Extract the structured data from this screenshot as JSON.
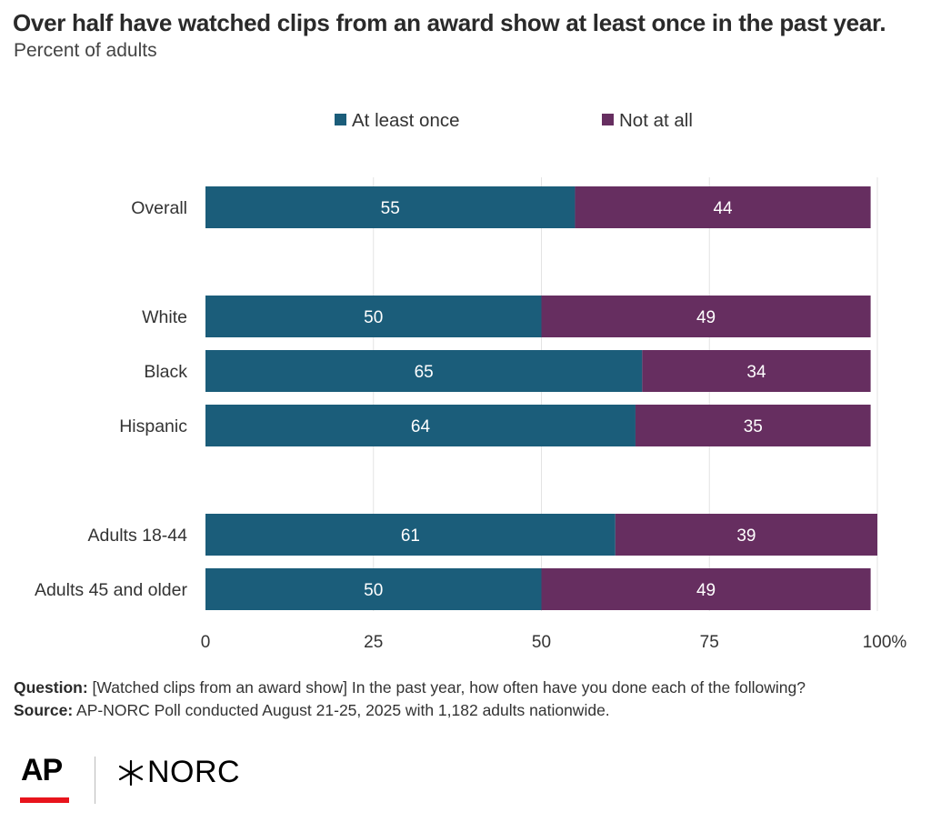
{
  "header": {
    "title": "Over half have watched clips from an award show at least once in the past year.",
    "subtitle": "Percent of adults"
  },
  "chart_data": {
    "type": "bar",
    "orientation": "horizontal",
    "stacked": true,
    "categories": [
      "Overall",
      "White",
      "Black",
      "Hispanic",
      "Adults 18-44",
      "Adults 45 and older"
    ],
    "groups": [
      [
        "Overall"
      ],
      [
        "White",
        "Black",
        "Hispanic"
      ],
      [
        "Adults 18-44",
        "Adults 45 and older"
      ]
    ],
    "series": [
      {
        "name": "At least once",
        "color": "#1b5d7a",
        "values": [
          55,
          50,
          65,
          64,
          61,
          50
        ]
      },
      {
        "name": "Not at all",
        "color": "#662e60",
        "values": [
          44,
          49,
          34,
          35,
          39,
          49
        ]
      }
    ],
    "xlim": [
      0,
      100
    ],
    "xticks": [
      0,
      25,
      50,
      75,
      100
    ],
    "xtick_labels": [
      "0",
      "25",
      "50",
      "75",
      "100%"
    ],
    "grid": "vertical",
    "legend_position": "top-center",
    "label_color": "#ffffff"
  },
  "notes": {
    "question_label": "Question:",
    "question_text": " [Watched clips from an award show] In the past year, how often have you done each of the following?",
    "source_label": "Source:",
    "source_text": " AP-NORC Poll conducted August 21-25, 2025 with 1,182 adults nationwide."
  },
  "logos": {
    "ap": "AP",
    "norc": "NORC",
    "ap_bar_color": "#e8141c"
  }
}
